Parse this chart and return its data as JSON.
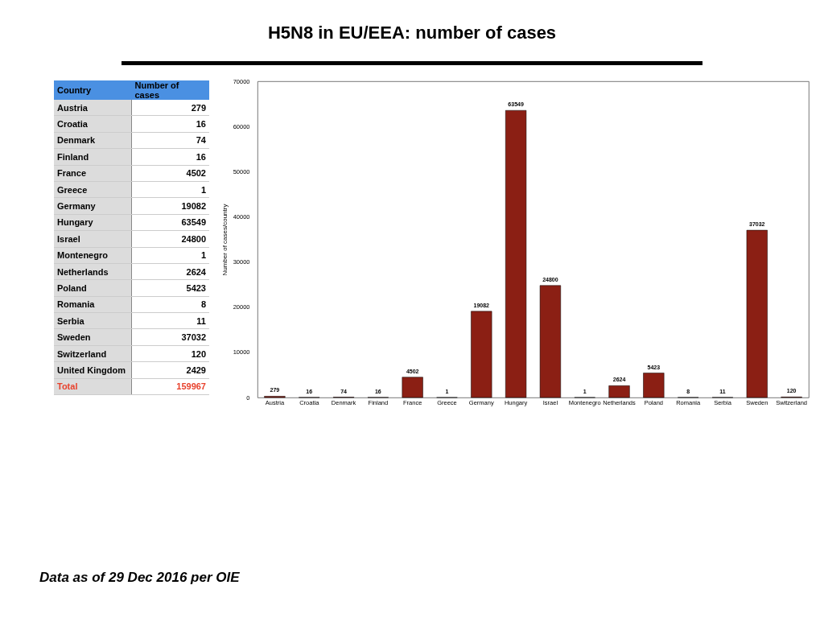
{
  "chart_data": [
    {
      "type": "other",
      "xlabel": "Country",
      "ylabel": "Number of cases",
      "categories": [
        "Austria",
        "Croatia",
        "Denmark",
        "Finland",
        "France",
        "Greece",
        "Germany",
        "Hungary",
        "Israel",
        "Montenegro",
        "Netherlands",
        "Poland",
        "Romania",
        "Serbia",
        "Sweden",
        "Switzerland",
        "United Kingdom",
        "Total"
      ],
      "values": [
        279,
        16,
        74,
        16,
        4502,
        1,
        19082,
        63549,
        24800,
        1,
        2624,
        5423,
        8,
        11,
        37032,
        120,
        2429,
        159967
      ],
      "data_labels": true
    },
    {
      "type": "bar",
      "title": "H5N8 in EU/EEA: number of cases",
      "ylabel": "Number of cases/country",
      "categories": [
        "Austria",
        "Croatia",
        "Denmark",
        "Finland",
        "France",
        "Greece",
        "Germany",
        "Hungary",
        "Israel",
        "Montenegro",
        "Netherlands",
        "Poland",
        "Romania",
        "Serbia",
        "Sweden",
        "Switzerland"
      ],
      "values": [
        279,
        16,
        74,
        16,
        4502,
        1,
        19082,
        63549,
        24800,
        1,
        2624,
        5423,
        8,
        11,
        37032,
        120
      ],
      "color": "#8b1f14",
      "ylim": [
        0,
        70000
      ],
      "yticks": [
        0,
        10000,
        20000,
        30000,
        40000,
        50000,
        60000,
        70000
      ],
      "grid": false,
      "data_labels": true,
      "annotations": [
        "Data as of 29 Dec 2016 per OIE"
      ]
    }
  ]
}
